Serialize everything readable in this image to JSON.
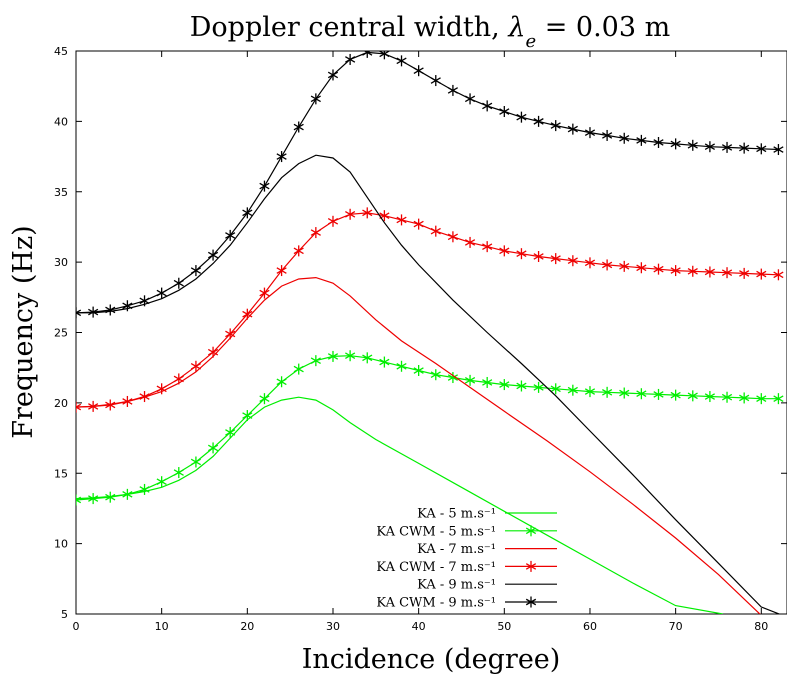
{
  "chart_data": {
    "type": "line",
    "title": "Doppler central width, λe = 0.03 m",
    "xlabel": "Incidence (degree)",
    "ylabel": "Frequency (Hz)",
    "xlim": [
      0,
      83
    ],
    "ylim": [
      5,
      45
    ],
    "x_ticks": [
      "0",
      "10",
      "20",
      "30",
      "40",
      "50",
      "60",
      "70",
      "80"
    ],
    "y_ticks": [
      "5",
      "10",
      "15",
      "20",
      "25",
      "30",
      "35",
      "40",
      "45"
    ],
    "grid": false,
    "legend_position": "bottom-center",
    "series": [
      {
        "name": "KA - 5  m.s⁻¹",
        "color": "#00ee00",
        "marker": "none",
        "x": [
          0,
          2,
          4,
          6,
          8,
          10,
          12,
          14,
          16,
          18,
          20,
          22,
          24,
          26,
          28,
          30,
          32,
          35,
          40,
          45,
          50,
          55,
          60,
          65,
          70,
          75.5
        ],
        "y": [
          13.2,
          13.25,
          13.35,
          13.5,
          13.7,
          14.0,
          14.5,
          15.2,
          16.2,
          17.5,
          18.8,
          19.7,
          20.2,
          20.4,
          20.2,
          19.5,
          18.6,
          17.4,
          15.7,
          14.0,
          12.3,
          10.6,
          8.9,
          7.2,
          5.6,
          5.0
        ]
      },
      {
        "name": "KA CWM - 5  m.s⁻¹",
        "color": "#00ee00",
        "marker": "asterisk",
        "x": [
          0,
          2,
          4,
          6,
          8,
          10,
          12,
          14,
          16,
          18,
          20,
          22,
          24,
          26,
          28,
          30,
          32,
          34,
          36,
          38,
          40,
          42,
          44,
          46,
          48,
          50,
          52,
          54,
          56,
          58,
          60,
          62,
          64,
          66,
          68,
          70,
          72,
          74,
          76,
          78,
          80,
          82
        ],
        "y": [
          13.1,
          13.2,
          13.3,
          13.5,
          13.85,
          14.4,
          15.05,
          15.8,
          16.8,
          17.9,
          19.1,
          20.3,
          21.5,
          22.4,
          23.0,
          23.3,
          23.35,
          23.2,
          22.9,
          22.6,
          22.3,
          22.0,
          21.8,
          21.6,
          21.45,
          21.3,
          21.2,
          21.1,
          21.0,
          20.9,
          20.8,
          20.75,
          20.7,
          20.65,
          20.6,
          20.55,
          20.5,
          20.45,
          20.4,
          20.35,
          20.3,
          20.3
        ]
      },
      {
        "name": "KA - 7  m.s⁻¹",
        "color": "#ee0000",
        "marker": "none",
        "x": [
          0,
          2,
          4,
          6,
          8,
          10,
          12,
          14,
          16,
          18,
          20,
          22,
          24,
          26,
          28,
          30,
          32,
          35,
          38,
          42,
          46,
          50,
          55,
          60,
          65,
          70,
          75,
          80
        ],
        "y": [
          19.7,
          19.75,
          19.9,
          20.1,
          20.4,
          20.8,
          21.4,
          22.2,
          23.3,
          24.6,
          26.0,
          27.3,
          28.3,
          28.8,
          28.9,
          28.5,
          27.6,
          25.9,
          24.4,
          22.8,
          21.1,
          19.4,
          17.3,
          15.1,
          12.8,
          10.4,
          7.8,
          4.9
        ]
      },
      {
        "name": "KA CWM - 7  m.s⁻¹",
        "color": "#ee0000",
        "marker": "asterisk",
        "x": [
          0,
          2,
          4,
          6,
          8,
          10,
          12,
          14,
          16,
          18,
          20,
          22,
          24,
          26,
          28,
          30,
          32,
          34,
          36,
          38,
          40,
          42,
          44,
          46,
          48,
          50,
          52,
          54,
          56,
          58,
          60,
          62,
          64,
          66,
          68,
          70,
          72,
          74,
          76,
          78,
          80,
          82
        ],
        "y": [
          19.7,
          19.75,
          19.85,
          20.1,
          20.45,
          21.0,
          21.7,
          22.6,
          23.6,
          24.9,
          26.3,
          27.8,
          29.4,
          30.8,
          32.1,
          32.9,
          33.4,
          33.5,
          33.3,
          33.0,
          32.7,
          32.2,
          31.8,
          31.4,
          31.1,
          30.8,
          30.6,
          30.4,
          30.25,
          30.1,
          29.95,
          29.8,
          29.7,
          29.6,
          29.5,
          29.4,
          29.35,
          29.3,
          29.25,
          29.2,
          29.15,
          29.1
        ]
      },
      {
        "name": "KA - 9  m.s⁻¹",
        "color": "#000000",
        "marker": "none",
        "x": [
          0,
          2,
          4,
          6,
          8,
          10,
          12,
          14,
          16,
          18,
          20,
          22,
          24,
          26,
          28,
          30,
          32,
          34,
          36,
          38,
          40,
          44,
          48,
          52,
          56,
          60,
          65,
          70,
          75,
          80,
          82.5
        ],
        "y": [
          26.4,
          26.4,
          26.5,
          26.7,
          27.0,
          27.4,
          28.0,
          28.8,
          29.9,
          31.2,
          32.8,
          34.5,
          36.0,
          37.0,
          37.6,
          37.4,
          36.4,
          34.6,
          32.8,
          31.2,
          29.8,
          27.3,
          25.0,
          22.8,
          20.5,
          18.0,
          14.9,
          11.7,
          8.6,
          5.5,
          4.9
        ]
      },
      {
        "name": "KA CWM - 9  m.s⁻¹",
        "color": "#000000",
        "marker": "asterisk",
        "x": [
          0,
          2,
          4,
          6,
          8,
          10,
          12,
          14,
          16,
          18,
          20,
          22,
          24,
          26,
          28,
          30,
          32,
          34,
          36,
          38,
          40,
          42,
          44,
          46,
          48,
          50,
          52,
          54,
          56,
          58,
          60,
          62,
          64,
          66,
          68,
          70,
          72,
          74,
          76,
          78,
          80,
          82
        ],
        "y": [
          26.4,
          26.45,
          26.6,
          26.9,
          27.25,
          27.8,
          28.5,
          29.4,
          30.5,
          31.9,
          33.5,
          35.4,
          37.5,
          39.6,
          41.6,
          43.3,
          44.4,
          44.9,
          44.8,
          44.3,
          43.6,
          42.9,
          42.2,
          41.6,
          41.1,
          40.7,
          40.3,
          40.0,
          39.7,
          39.45,
          39.2,
          39.0,
          38.8,
          38.65,
          38.5,
          38.4,
          38.3,
          38.2,
          38.15,
          38.1,
          38.05,
          38.0
        ]
      }
    ]
  }
}
